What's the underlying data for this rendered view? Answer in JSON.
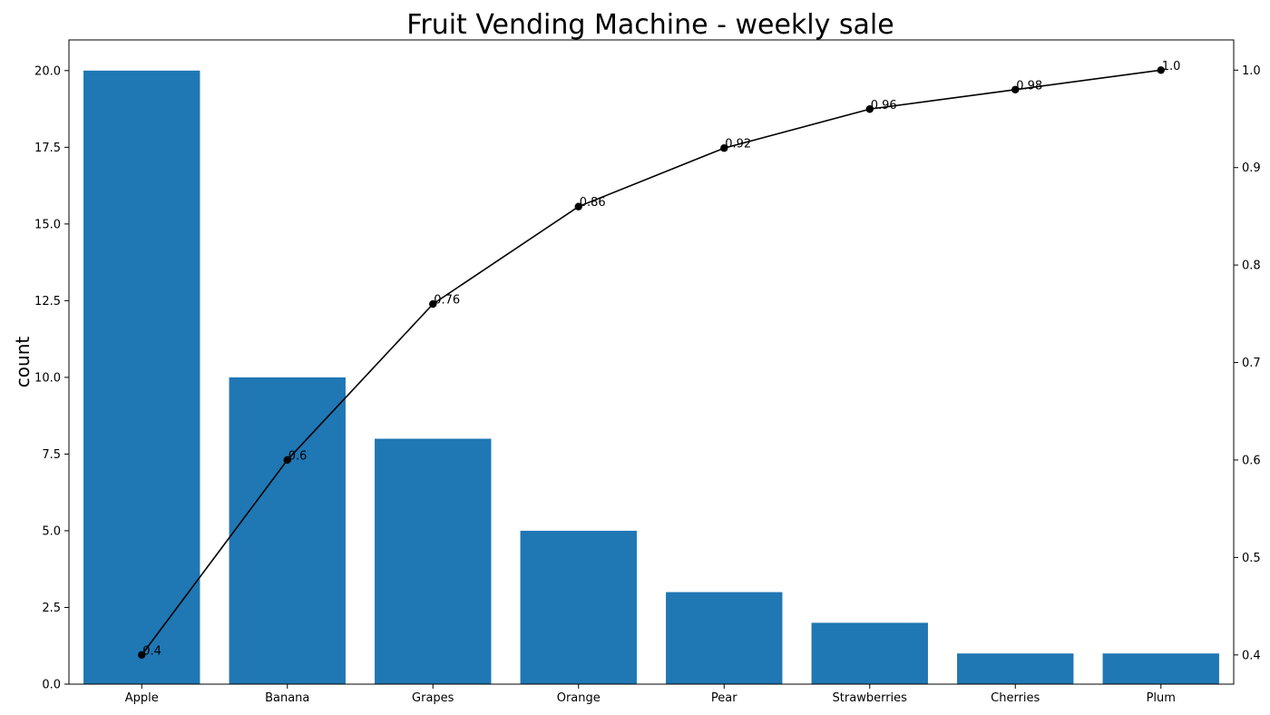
{
  "chart_data": {
    "type": "bar",
    "title": "Fruit Vending Machine - weekly sale",
    "xlabel": "",
    "ylabel": "count",
    "y2label": "",
    "categories": [
      "Apple",
      "Banana",
      "Grapes",
      "Orange",
      "Pear",
      "Strawberries",
      "Cherries",
      "Plum"
    ],
    "ylim": [
      0,
      21
    ],
    "y2lim": [
      0.37,
      1.031
    ],
    "yticks": [
      0.0,
      2.5,
      5.0,
      7.5,
      10.0,
      12.5,
      15.0,
      17.5,
      20.0
    ],
    "ytick_labels": [
      "0.0",
      "2.5",
      "5.0",
      "7.5",
      "10.0",
      "12.5",
      "15.0",
      "17.5",
      "20.0"
    ],
    "y2ticks": [
      0.4,
      0.5,
      0.6,
      0.7,
      0.8,
      0.9,
      1.0
    ],
    "y2tick_labels": [
      "0.4",
      "0.5",
      "0.6",
      "0.7",
      "0.8",
      "0.9",
      "1.0"
    ],
    "grid": false,
    "series": [
      {
        "type": "bar",
        "axis": "left",
        "color": "#1f77b4",
        "values": [
          20,
          10,
          8,
          5,
          3,
          2,
          1,
          1
        ]
      },
      {
        "type": "line",
        "axis": "right",
        "color": "#000000",
        "marker": "circle",
        "values": [
          0.4,
          0.6,
          0.76,
          0.86,
          0.92,
          0.96,
          0.98,
          1.0
        ],
        "labels": [
          "0.4",
          "0.6",
          "0.76",
          "0.86",
          "0.92",
          "0.96",
          "0.98",
          "1.0"
        ]
      }
    ]
  }
}
